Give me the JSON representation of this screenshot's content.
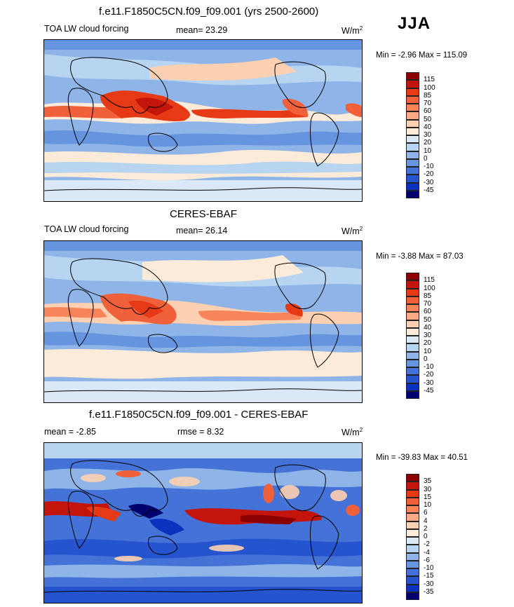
{
  "season": "JJA",
  "panels": [
    {
      "title": "f.e11.F1850C5CN.f09_f09.001 (yrs 2500-2600)",
      "left_label": "TOA LW cloud forcing",
      "center_label": "mean=  23.29",
      "units_base": "W/m",
      "units_exp": "2",
      "minmax": "Min =  -2.96 Max = 115.09",
      "levels": [
        "115",
        "100",
        "85",
        "70",
        "60",
        "50",
        "40",
        "30",
        "20",
        "10",
        "0",
        "-10",
        "-20",
        "-30",
        "-45"
      ],
      "colors": [
        "#8b0000",
        "#c4150c",
        "#e53a15",
        "#f0603a",
        "#f8845a",
        "#fba986",
        "#fcd0b0",
        "#fcebd9",
        "#dbe9f7",
        "#b7d4f0",
        "#8fb5e8",
        "#6794de",
        "#4472d6",
        "#2654cf",
        "#0a32be",
        "#02026e"
      ]
    },
    {
      "title": "CERES-EBAF",
      "left_label": "TOA LW cloud forcing",
      "center_label": "mean=  26.14",
      "units_base": "W/m",
      "units_exp": "2",
      "minmax": "Min =  -3.88 Max =  87.03",
      "levels": [
        "115",
        "100",
        "85",
        "70",
        "60",
        "50",
        "40",
        "30",
        "20",
        "10",
        "0",
        "-10",
        "-20",
        "-30",
        "-45"
      ],
      "colors": [
        "#8b0000",
        "#c4150c",
        "#e53a15",
        "#f0603a",
        "#f8845a",
        "#fba986",
        "#fcd0b0",
        "#fcebd9",
        "#dbe9f7",
        "#b7d4f0",
        "#8fb5e8",
        "#6794de",
        "#4472d6",
        "#2654cf",
        "#0a32be",
        "#02026e"
      ]
    },
    {
      "title": "f.e11.F1850C5CN.f09_f09.001 - CERES-EBAF",
      "left_label": "mean =  -2.85",
      "center_label": "rmse =   8.32",
      "units_base": "W/m",
      "units_exp": "2",
      "minmax": "Min = -39.83 Max =  40.51",
      "levels": [
        "35",
        "30",
        "15",
        "10",
        "6",
        "4",
        "2",
        "0",
        "-2",
        "-4",
        "-6",
        "-10",
        "-15",
        "-30",
        "-35"
      ],
      "colors": [
        "#8b0000",
        "#c4150c",
        "#e53a15",
        "#f0603a",
        "#f8845a",
        "#fba986",
        "#fcd0b0",
        "#fcebd9",
        "#dbe9f7",
        "#b7d4f0",
        "#8fb5e8",
        "#6794de",
        "#4472d6",
        "#2654cf",
        "#0a32be",
        "#02026e"
      ]
    }
  ]
}
